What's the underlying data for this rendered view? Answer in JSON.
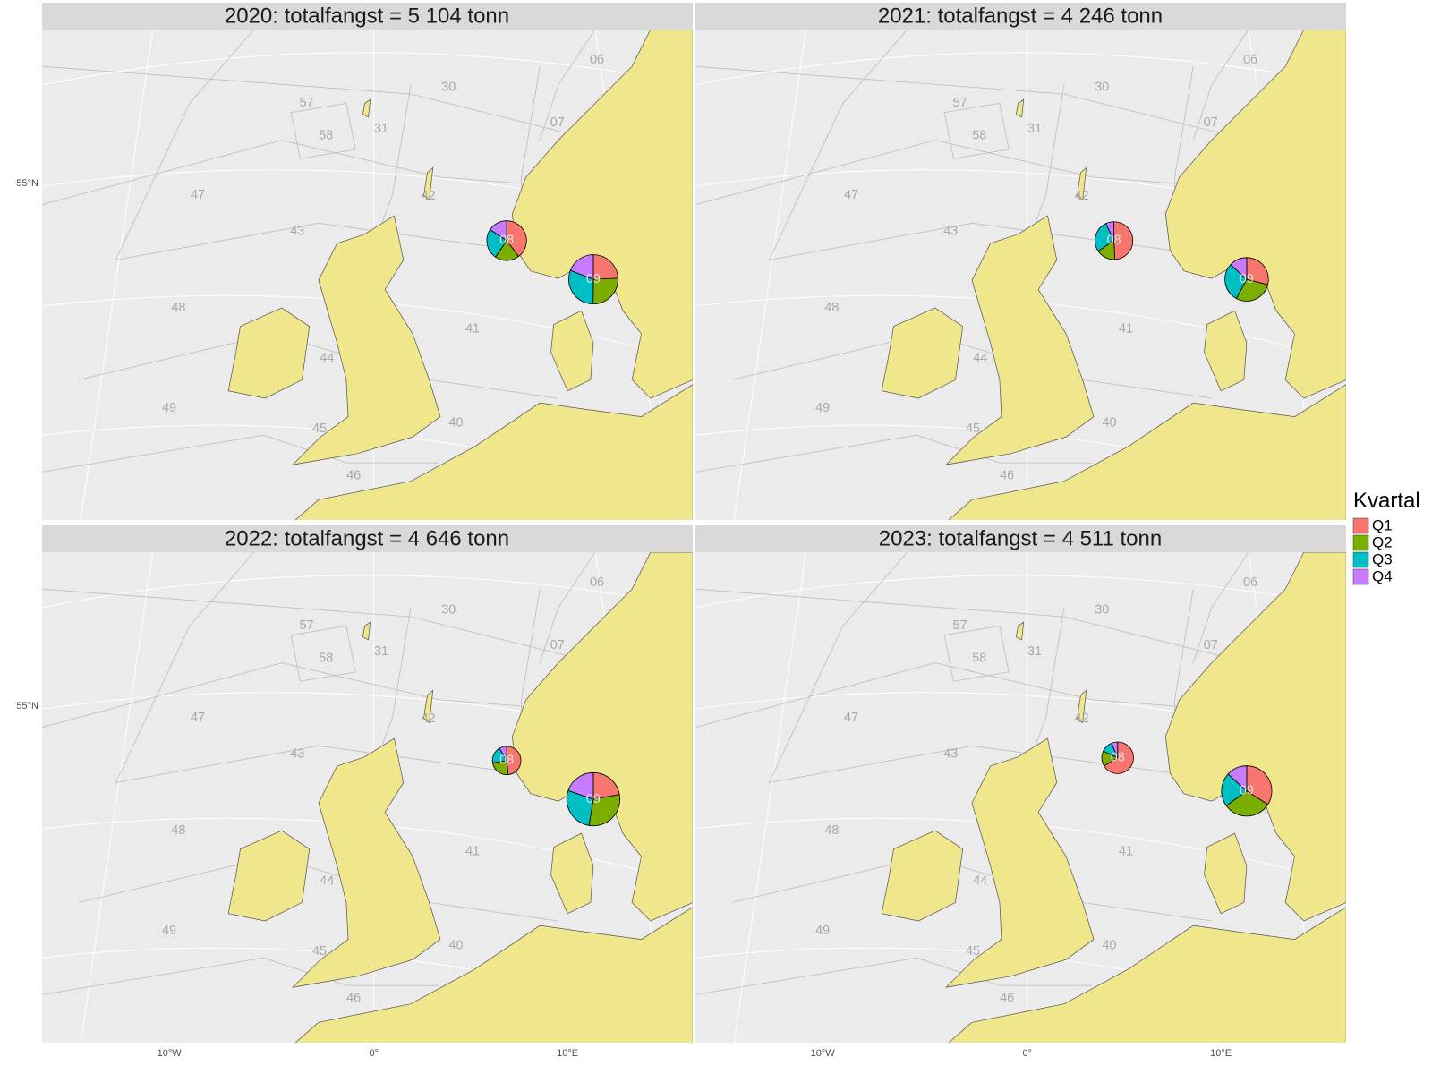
{
  "panels": [
    {
      "title": "2020: totalfangst = 5 104 tonn",
      "pies": [
        {
          "area": "08",
          "values": [
            800,
            400,
            500,
            314
          ]
        },
        {
          "area": "09",
          "values": [
            750,
            800,
            950,
            590
          ]
        }
      ]
    },
    {
      "title": "2021: totalfangst = 4 246 tonn",
      "pies": [
        {
          "area": "08",
          "values": [
            900,
            300,
            500,
            128
          ]
        },
        {
          "area": "09",
          "values": [
            700,
            700,
            700,
            318
          ]
        }
      ]
    },
    {
      "title": "2022: totalfangst = 4 646 tonn",
      "pies": [
        {
          "area": "08",
          "values": [
            500,
            250,
            200,
            86
          ]
        },
        {
          "area": "09",
          "values": [
            800,
            1100,
            1000,
            710
          ]
        }
      ]
    },
    {
      "title": "2023: totalfangst = 4 511 tonn",
      "pies": [
        {
          "area": "08",
          "values": [
            850,
            200,
            150,
            81
          ]
        },
        {
          "area": "09",
          "values": [
            1100,
            1000,
            700,
            430
          ]
        }
      ]
    }
  ],
  "area_labels": [
    "30",
    "57",
    "58",
    "31",
    "06",
    "07",
    "47",
    "42",
    "43",
    "48",
    "41",
    "44",
    "49",
    "40",
    "45",
    "46"
  ],
  "axis": {
    "y_label": "55°N",
    "x_labels": [
      "10°W",
      "0°",
      "10°E"
    ]
  },
  "legend": {
    "title": "Kvartal",
    "items": [
      {
        "name": "Q1",
        "color": "#F8766D"
      },
      {
        "name": "Q2",
        "color": "#7CAE00"
      },
      {
        "name": "Q3",
        "color": "#00BFC4"
      },
      {
        "name": "Q4",
        "color": "#C77CFF"
      }
    ]
  }
}
